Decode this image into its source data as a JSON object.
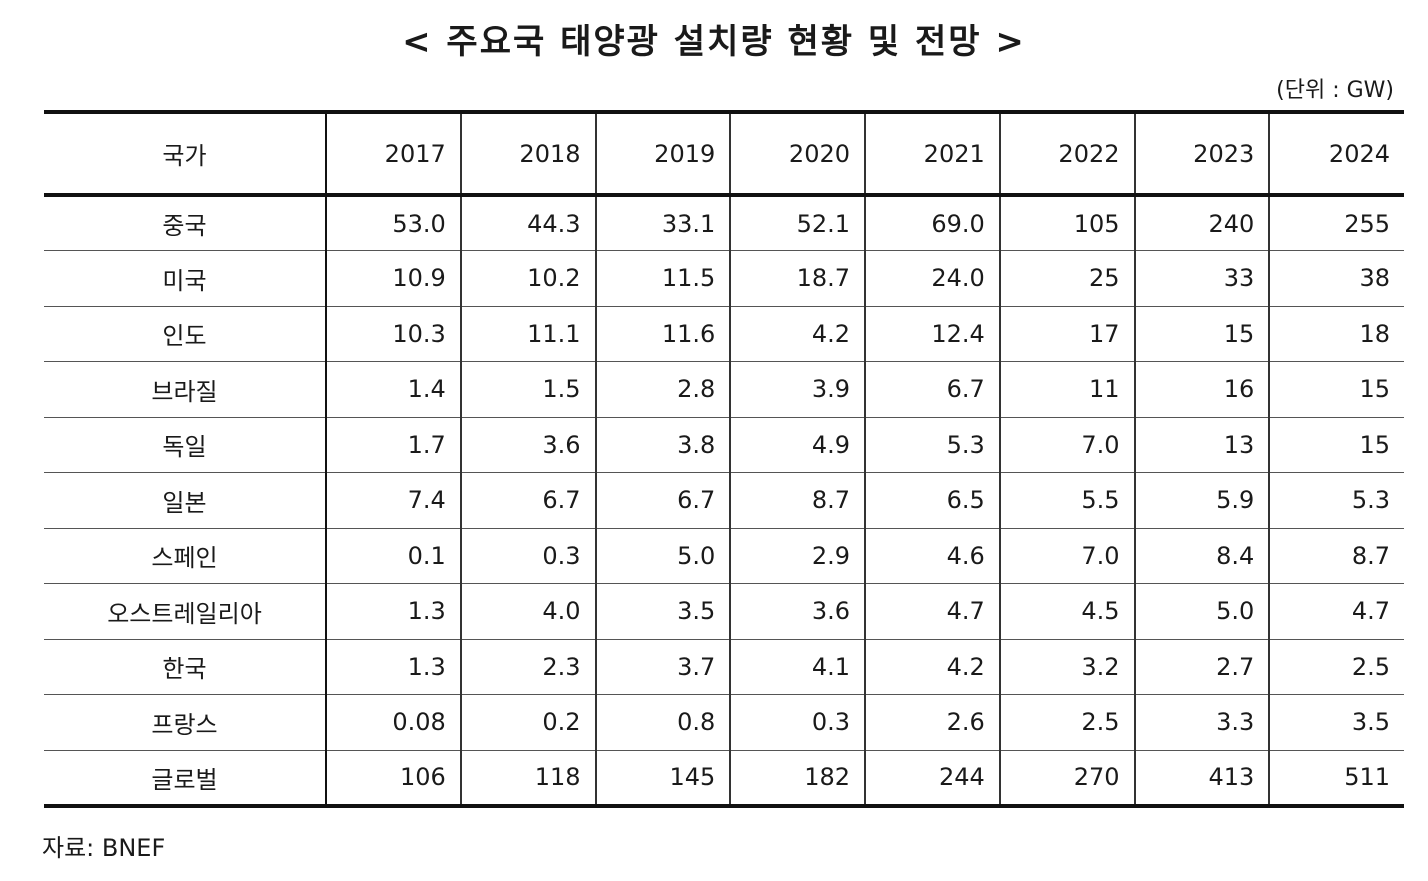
{
  "title": "< 주요국 태양광 설치량 현황 및 전망 >",
  "unit": "(단위 : GW)",
  "table": {
    "headers": [
      "국가",
      "2017",
      "2018",
      "2019",
      "2020",
      "2021",
      "2022",
      "2023",
      "2024"
    ],
    "rows": [
      [
        "중국",
        "53.0",
        "44.3",
        "33.1",
        "52.1",
        "69.0",
        "105",
        "240",
        "255"
      ],
      [
        "미국",
        "10.9",
        "10.2",
        "11.5",
        "18.7",
        "24.0",
        "25",
        "33",
        "38"
      ],
      [
        "인도",
        "10.3",
        "11.1",
        "11.6",
        "4.2",
        "12.4",
        "17",
        "15",
        "18"
      ],
      [
        "브라질",
        "1.4",
        "1.5",
        "2.8",
        "3.9",
        "6.7",
        "11",
        "16",
        "15"
      ],
      [
        "독일",
        "1.7",
        "3.6",
        "3.8",
        "4.9",
        "5.3",
        "7.0",
        "13",
        "15"
      ],
      [
        "일본",
        "7.4",
        "6.7",
        "6.7",
        "8.7",
        "6.5",
        "5.5",
        "5.9",
        "5.3"
      ],
      [
        "스페인",
        "0.1",
        "0.3",
        "5.0",
        "2.9",
        "4.6",
        "7.0",
        "8.4",
        "8.7"
      ],
      [
        "오스트레일리아",
        "1.3",
        "4.0",
        "3.5",
        "3.6",
        "4.7",
        "4.5",
        "5.0",
        "4.7"
      ],
      [
        "한국",
        "1.3",
        "2.3",
        "3.7",
        "4.1",
        "4.2",
        "3.2",
        "2.7",
        "2.5"
      ],
      [
        "프랑스",
        "0.08",
        "0.2",
        "0.8",
        "0.3",
        "2.6",
        "2.5",
        "3.3",
        "3.5"
      ],
      [
        "글로벌",
        "106",
        "118",
        "145",
        "182",
        "244",
        "270",
        "413",
        "511"
      ]
    ]
  },
  "source": "자료: BNEF"
}
